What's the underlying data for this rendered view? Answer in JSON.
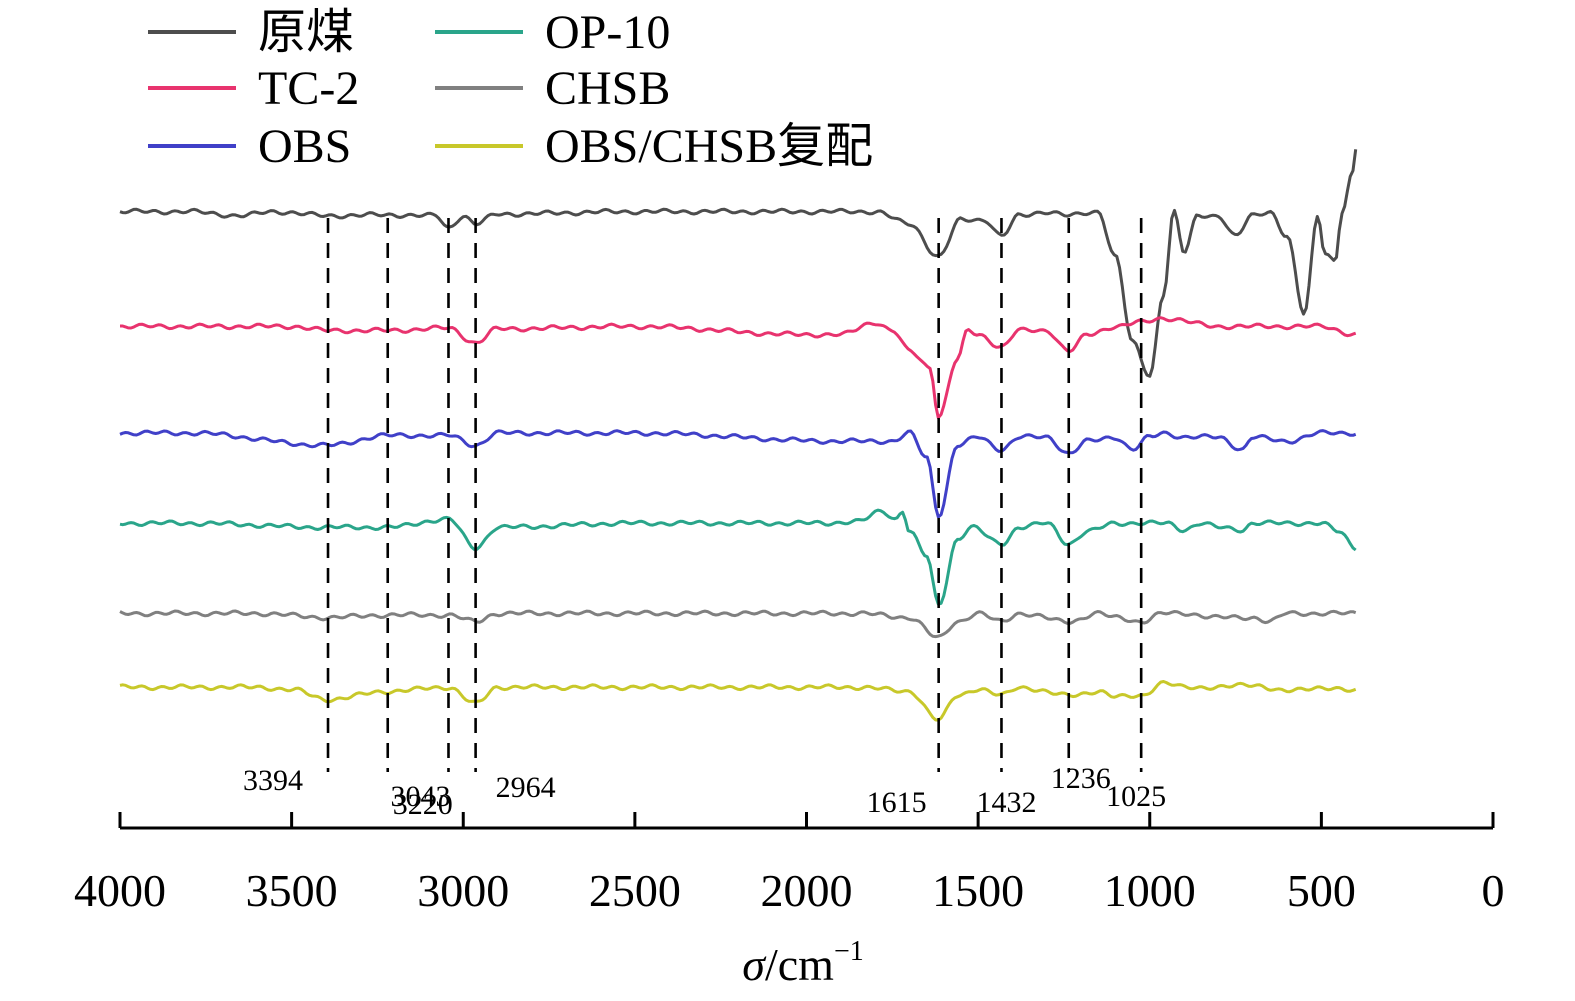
{
  "chart_data": {
    "type": "line",
    "title": "",
    "xlabel_symbol": "σ",
    "xlabel_unit": "/cm",
    "xlabel_exp": "−1",
    "xlim": [
      4000,
      0
    ],
    "xticks": [
      4000,
      3500,
      3000,
      2500,
      2000,
      1500,
      1000,
      500,
      0
    ],
    "xtick_labels": [
      "4000",
      "3500",
      "3000",
      "2500",
      "2000",
      "1500",
      "1000",
      "500",
      "0"
    ],
    "y_axis_visible": false,
    "grid": false,
    "legend_position": "top-left",
    "series": [
      {
        "name": "原煤",
        "color": "#4d4d4d",
        "offset": 6.2,
        "points": [
          [
            4000,
            0
          ],
          [
            3800,
            0
          ],
          [
            3650,
            -0.05
          ],
          [
            3550,
            0
          ],
          [
            3394,
            -0.05
          ],
          [
            3220,
            -0.04
          ],
          [
            3080,
            -0.05
          ],
          [
            3043,
            -0.2
          ],
          [
            3000,
            -0.05
          ],
          [
            2964,
            -0.15
          ],
          [
            2900,
            -0.03
          ],
          [
            2500,
            0
          ],
          [
            1900,
            0
          ],
          [
            1800,
            0
          ],
          [
            1700,
            -0.15
          ],
          [
            1615,
            -0.55
          ],
          [
            1550,
            -0.1
          ],
          [
            1480,
            -0.1
          ],
          [
            1432,
            -0.3
          ],
          [
            1380,
            -0.05
          ],
          [
            1300,
            0
          ],
          [
            1236,
            -0.05
          ],
          [
            1150,
            0
          ],
          [
            1100,
            -0.55
          ],
          [
            1050,
            -1.6
          ],
          [
            1000,
            -2.0
          ],
          [
            960,
            -1.0
          ],
          [
            930,
            0
          ],
          [
            900,
            -0.5
          ],
          [
            860,
            -0.05
          ],
          [
            800,
            -0.05
          ],
          [
            750,
            -0.3
          ],
          [
            700,
            -0.05
          ],
          [
            650,
            0
          ],
          [
            600,
            -0.3
          ],
          [
            550,
            -1.25
          ],
          [
            510,
            -0.05
          ],
          [
            490,
            -0.5
          ],
          [
            460,
            -0.6
          ],
          [
            440,
            0.0
          ],
          [
            410,
            0.45
          ],
          [
            400,
            0.75
          ]
        ]
      },
      {
        "name": "TC-2",
        "color": "#e8336e",
        "offset": 4.8,
        "points": [
          [
            4000,
            0
          ],
          [
            3500,
            0
          ],
          [
            3394,
            -0.05
          ],
          [
            3220,
            -0.05
          ],
          [
            3043,
            -0.02
          ],
          [
            2964,
            -0.2
          ],
          [
            2900,
            -0.03
          ],
          [
            2500,
            0
          ],
          [
            2000,
            -0.1
          ],
          [
            1900,
            -0.1
          ],
          [
            1800,
            0.05
          ],
          [
            1750,
            -0.05
          ],
          [
            1700,
            -0.3
          ],
          [
            1640,
            -0.5
          ],
          [
            1615,
            -1.1
          ],
          [
            1560,
            -0.4
          ],
          [
            1530,
            -0.05
          ],
          [
            1500,
            -0.1
          ],
          [
            1432,
            -0.25
          ],
          [
            1380,
            -0.05
          ],
          [
            1300,
            -0.05
          ],
          [
            1236,
            -0.3
          ],
          [
            1180,
            -0.1
          ],
          [
            1100,
            0
          ],
          [
            1025,
            0.05
          ],
          [
            960,
            0.1
          ],
          [
            800,
            0
          ],
          [
            500,
            0
          ],
          [
            400,
            -0.1
          ]
        ]
      },
      {
        "name": "OBS",
        "color": "#4040c8",
        "offset": 3.5,
        "points": [
          [
            4000,
            0
          ],
          [
            3800,
            0
          ],
          [
            3394,
            -0.15
          ],
          [
            3220,
            -0.03
          ],
          [
            3043,
            -0.03
          ],
          [
            2964,
            -0.15
          ],
          [
            2900,
            0
          ],
          [
            2500,
            0
          ],
          [
            1900,
            -0.1
          ],
          [
            1750,
            -0.1
          ],
          [
            1700,
            0
          ],
          [
            1650,
            -0.3
          ],
          [
            1615,
            -1.0
          ],
          [
            1560,
            -0.15
          ],
          [
            1500,
            -0.05
          ],
          [
            1432,
            -0.2
          ],
          [
            1380,
            -0.05
          ],
          [
            1300,
            -0.05
          ],
          [
            1236,
            -0.25
          ],
          [
            1180,
            -0.1
          ],
          [
            1100,
            -0.05
          ],
          [
            1050,
            -0.2
          ],
          [
            1000,
            -0.05
          ],
          [
            960,
            0
          ],
          [
            900,
            -0.05
          ],
          [
            800,
            -0.05
          ],
          [
            730,
            -0.2
          ],
          [
            700,
            -0.05
          ],
          [
            600,
            -0.1
          ],
          [
            500,
            0
          ],
          [
            400,
            0
          ]
        ]
      },
      {
        "name": "OP-10",
        "color": "#2aa58a",
        "offset": 2.4,
        "points": [
          [
            4000,
            0
          ],
          [
            3800,
            0
          ],
          [
            3394,
            -0.05
          ],
          [
            3220,
            -0.05
          ],
          [
            3043,
            0.05
          ],
          [
            2964,
            -0.3
          ],
          [
            2900,
            -0.05
          ],
          [
            2500,
            0
          ],
          [
            1950,
            0
          ],
          [
            1850,
            0.02
          ],
          [
            1780,
            0.15
          ],
          [
            1740,
            0.05
          ],
          [
            1720,
            0.15
          ],
          [
            1700,
            -0.1
          ],
          [
            1650,
            -0.4
          ],
          [
            1615,
            -1.0
          ],
          [
            1560,
            -0.2
          ],
          [
            1520,
            -0.05
          ],
          [
            1432,
            -0.25
          ],
          [
            1380,
            -0.05
          ],
          [
            1300,
            0
          ],
          [
            1236,
            -0.25
          ],
          [
            1180,
            -0.1
          ],
          [
            1100,
            0
          ],
          [
            1025,
            0
          ],
          [
            950,
            0
          ],
          [
            900,
            -0.08
          ],
          [
            850,
            0
          ],
          [
            800,
            -0.05
          ],
          [
            730,
            -0.08
          ],
          [
            700,
            0
          ],
          [
            600,
            0
          ],
          [
            500,
            0
          ],
          [
            450,
            -0.1
          ],
          [
            400,
            -0.3
          ]
        ]
      },
      {
        "name": "CHSB",
        "color": "#808080",
        "offset": 1.3,
        "points": [
          [
            4000,
            0
          ],
          [
            3600,
            0
          ],
          [
            3394,
            -0.05
          ],
          [
            3220,
            -0.02
          ],
          [
            3043,
            -0.02
          ],
          [
            2964,
            -0.1
          ],
          [
            2900,
            0
          ],
          [
            2500,
            0
          ],
          [
            1850,
            0
          ],
          [
            1700,
            -0.05
          ],
          [
            1615,
            -0.3
          ],
          [
            1560,
            -0.1
          ],
          [
            1500,
            0
          ],
          [
            1432,
            -0.1
          ],
          [
            1380,
            0
          ],
          [
            1236,
            -0.1
          ],
          [
            1150,
            0
          ],
          [
            1100,
            -0.05
          ],
          [
            1025,
            -0.1
          ],
          [
            960,
            0
          ],
          [
            900,
            0
          ],
          [
            800,
            -0.05
          ],
          [
            700,
            -0.05
          ],
          [
            650,
            -0.1
          ],
          [
            600,
            0
          ],
          [
            500,
            0
          ],
          [
            400,
            0
          ]
        ]
      },
      {
        "name": "OBS/CHSB复配",
        "color": "#c8c82a",
        "offset": 0.4,
        "points": [
          [
            4000,
            0
          ],
          [
            3600,
            0
          ],
          [
            3500,
            -0.03
          ],
          [
            3394,
            -0.15
          ],
          [
            3220,
            -0.05
          ],
          [
            3043,
            0.0
          ],
          [
            2964,
            -0.2
          ],
          [
            2900,
            0
          ],
          [
            2500,
            0
          ],
          [
            1850,
            0
          ],
          [
            1700,
            -0.05
          ],
          [
            1615,
            -0.4
          ],
          [
            1560,
            -0.1
          ],
          [
            1500,
            -0.02
          ],
          [
            1432,
            -0.1
          ],
          [
            1380,
            0
          ],
          [
            1236,
            -0.1
          ],
          [
            1150,
            -0.05
          ],
          [
            1100,
            -0.12
          ],
          [
            1025,
            -0.1
          ],
          [
            960,
            0.05
          ],
          [
            900,
            0
          ],
          [
            800,
            0
          ],
          [
            700,
            0.03
          ],
          [
            600,
            -0.05
          ],
          [
            500,
            0
          ],
          [
            400,
            -0.05
          ]
        ]
      }
    ],
    "annotations": [
      {
        "x": 3394,
        "label": "3394"
      },
      {
        "x": 3220,
        "label": "3220"
      },
      {
        "x": 3043,
        "label": "3043"
      },
      {
        "x": 2964,
        "label": "2964"
      },
      {
        "x": 1615,
        "label": "1615"
      },
      {
        "x": 1432,
        "label": "1432"
      },
      {
        "x": 1236,
        "label": "1236"
      },
      {
        "x": 1025,
        "label": "1025"
      }
    ]
  }
}
